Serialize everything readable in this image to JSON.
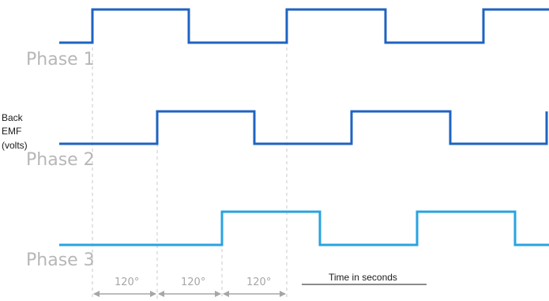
{
  "diagram": {
    "phases": [
      {
        "label": "Phase 1",
        "color": "#1f63c2"
      },
      {
        "label": "Phase 2",
        "color": "#1f63c2"
      },
      {
        "label": "Phase 3",
        "color": "#29a3e0"
      }
    ],
    "y_label_lines": [
      "Back",
      "EMF",
      "(volts)"
    ],
    "x_label": "Time in seconds",
    "angle_labels": [
      "120°",
      "120°",
      "120°"
    ],
    "colors": {
      "dashed_guide": "#c8c8c8",
      "arrow": "#a6a6a6",
      "phase_text": "#b7b7b7"
    }
  }
}
